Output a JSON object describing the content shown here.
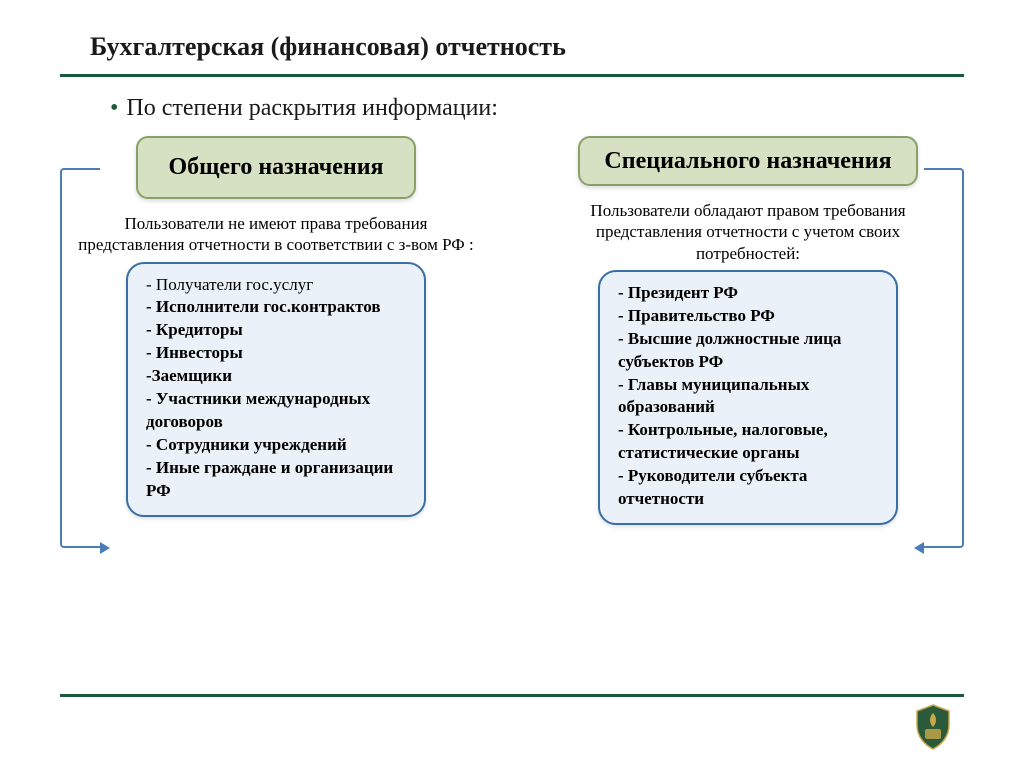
{
  "title": "Бухгалтерская (финансовая) отчетность",
  "subtitle": "По степени раскрытия информации:",
  "colors": {
    "accent_line": "#1a5a3a",
    "header_box_bg": "#d6e0c3",
    "header_box_border": "#8aa06a",
    "list_box_bg": "#eaf1f8",
    "list_box_border": "#3a6ea5",
    "connector": "#4a7db8"
  },
  "left": {
    "header": "Общего назначения",
    "desc": "Пользователи не имеют права требования представления отчетности в соответствии с з-вом РФ :",
    "items": [
      "- Получатели гос.услуг",
      "- Исполнители гос.контрактов",
      "- Кредиторы",
      "- Инвесторы",
      "-Заемщики",
      "- Участники международных договоров",
      "- Сотрудники учреждений",
      "- Иные граждане и организации РФ"
    ]
  },
  "right": {
    "header": "Специального назначения",
    "desc": "Пользователи обладают правом требования представления отчетности с учетом своих потребностей:",
    "items": [
      "- Президент РФ",
      "- Правительство РФ",
      "- Высшие должностные лица субъектов РФ",
      "- Главы муниципальных образований",
      "- Контрольные, налоговые, статистические органы",
      "- Руководители субъекта отчетности"
    ]
  }
}
